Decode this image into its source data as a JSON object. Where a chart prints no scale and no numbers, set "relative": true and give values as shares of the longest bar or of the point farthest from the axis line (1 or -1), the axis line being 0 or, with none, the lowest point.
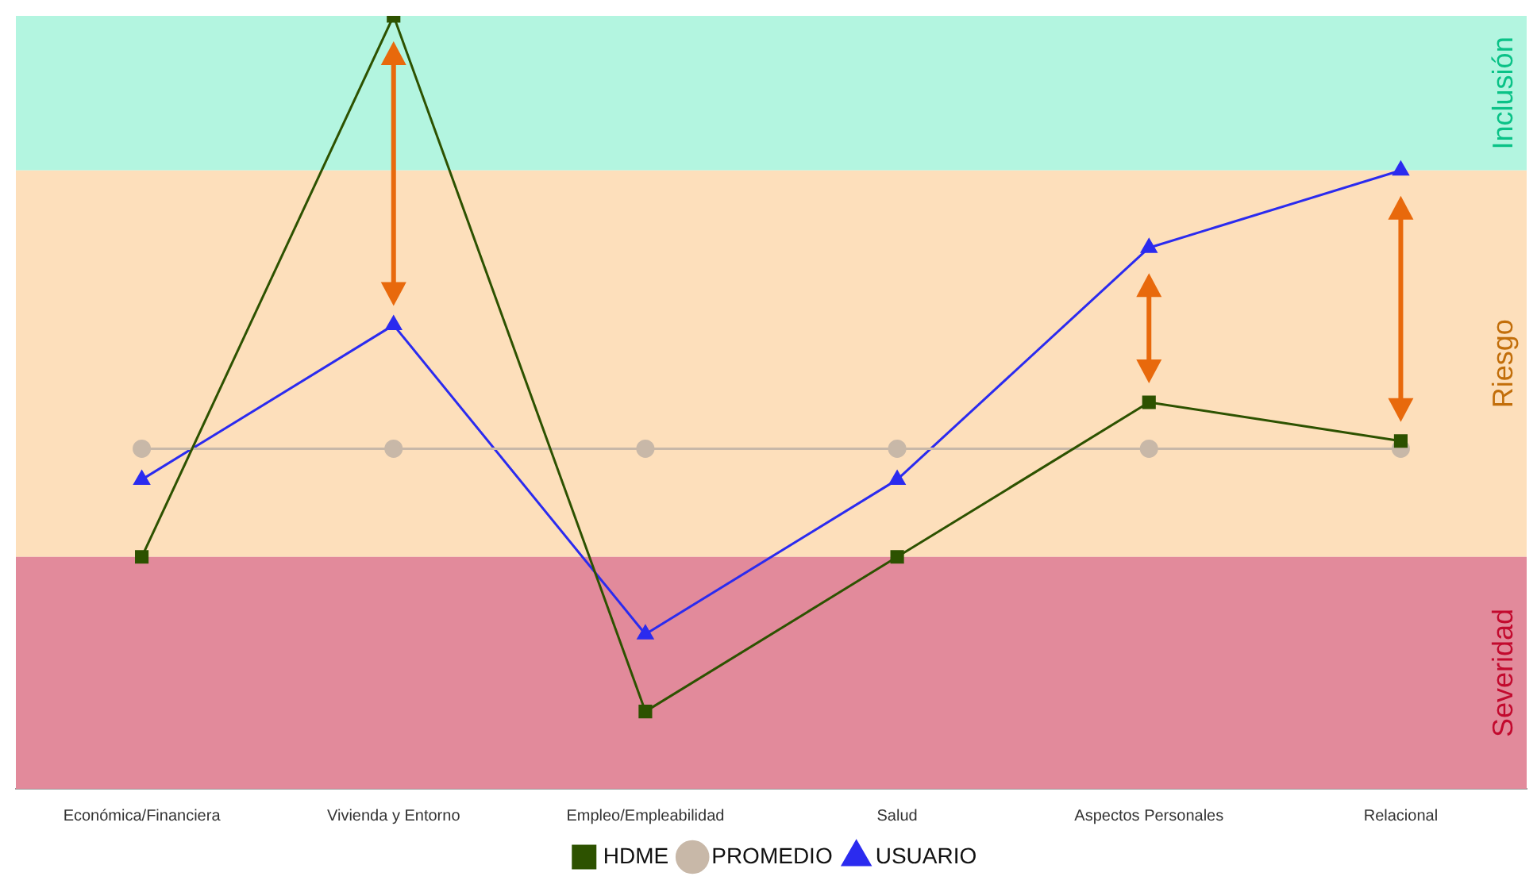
{
  "chart_data": {
    "type": "line",
    "relative": true,
    "categories": [
      "Económica/Financiera",
      "Vivienda y Entorno",
      "Empleo/Empleabilidad",
      "Salud",
      "Aspectos Personales",
      "Relacional"
    ],
    "series": [
      {
        "name": "HDME",
        "color": "#2d5200",
        "marker": "square",
        "values": [
          0.3,
          1,
          0.1,
          0.3,
          0.5,
          0.45
        ]
      },
      {
        "name": "PROMEDIO",
        "color": "#c8b8a8",
        "marker": "circle",
        "values": [
          0.44,
          0.44,
          0.44,
          0.44,
          0.44,
          0.44
        ]
      },
      {
        "name": "USUARIO",
        "color": "#2b2bef",
        "marker": "triangle",
        "values": [
          0.4,
          0.6,
          0.2,
          0.4,
          0.7,
          0.8
        ]
      }
    ],
    "bands": [
      {
        "axis": "y",
        "from": 0.8,
        "to": 1,
        "label": "Inclusión",
        "color": "#b3f5e0"
      },
      {
        "axis": "y",
        "from": 0.3,
        "to": 0.8,
        "label": "Riesgo",
        "color": "#fddfbb"
      },
      {
        "axis": "y",
        "from": 0,
        "to": 0.3,
        "label": "Severidad",
        "color": "#e28a9b"
      }
    ],
    "legend": "bottom",
    "line_style": "solid"
  }
}
